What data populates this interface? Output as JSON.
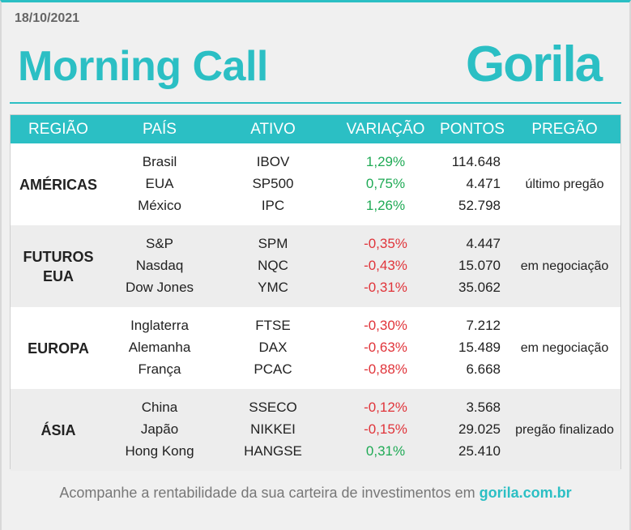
{
  "date": "18/10/2021",
  "title": "Morning Call",
  "logo_text": "Gorila",
  "headers": [
    "REGIÃO",
    "PAÍS",
    "ATIVO",
    "VARIAÇÃO",
    "PONTOS",
    "PREGÃO"
  ],
  "groups": [
    {
      "region": "AMÉRICAS",
      "pregao": "último pregão",
      "rows": [
        {
          "pais": "Brasil",
          "ativo": "IBOV",
          "variacao": "1,29%",
          "pontos": "114.648",
          "trend": "pos"
        },
        {
          "pais": "EUA",
          "ativo": "SP500",
          "variacao": "0,75%",
          "pontos": "4.471",
          "trend": "pos"
        },
        {
          "pais": "México",
          "ativo": "IPC",
          "variacao": "1,26%",
          "pontos": "52.798",
          "trend": "pos"
        }
      ]
    },
    {
      "region": "FUTUROS EUA",
      "pregao": "em negociação",
      "rows": [
        {
          "pais": "S&P",
          "ativo": "SPM",
          "variacao": "-0,35%",
          "pontos": "4.447",
          "trend": "neg"
        },
        {
          "pais": "Nasdaq",
          "ativo": "NQC",
          "variacao": "-0,43%",
          "pontos": "15.070",
          "trend": "neg"
        },
        {
          "pais": "Dow Jones",
          "ativo": "YMC",
          "variacao": "-0,31%",
          "pontos": "35.062",
          "trend": "neg"
        }
      ]
    },
    {
      "region": "EUROPA",
      "pregao": "em negociação",
      "rows": [
        {
          "pais": "Inglaterra",
          "ativo": "FTSE",
          "variacao": "-0,30%",
          "pontos": "7.212",
          "trend": "neg"
        },
        {
          "pais": "Alemanha",
          "ativo": "DAX",
          "variacao": "-0,63%",
          "pontos": "15.489",
          "trend": "neg"
        },
        {
          "pais": "França",
          "ativo": "PCAC",
          "variacao": "-0,88%",
          "pontos": "6.668",
          "trend": "neg"
        }
      ]
    },
    {
      "region": "ÁSIA",
      "pregao": "pregão finalizado",
      "rows": [
        {
          "pais": "China",
          "ativo": "SSECO",
          "variacao": "-0,12%",
          "pontos": "3.568",
          "trend": "neg"
        },
        {
          "pais": "Japão",
          "ativo": "NIKKEI",
          "variacao": "-0,15%",
          "pontos": "29.025",
          "trend": "neg"
        },
        {
          "pais": "Hong Kong",
          "ativo": "HANGSE",
          "variacao": "0,31%",
          "pontos": "25.410",
          "trend": "pos"
        }
      ]
    }
  ],
  "footer": {
    "text": "Acompanhe a rentabilidade da sua carteira de investimentos em",
    "link": "gorila.com.br"
  },
  "colors": {
    "accent": "#2bbfc4",
    "positive": "#1faa55",
    "negative": "#e0343a"
  }
}
